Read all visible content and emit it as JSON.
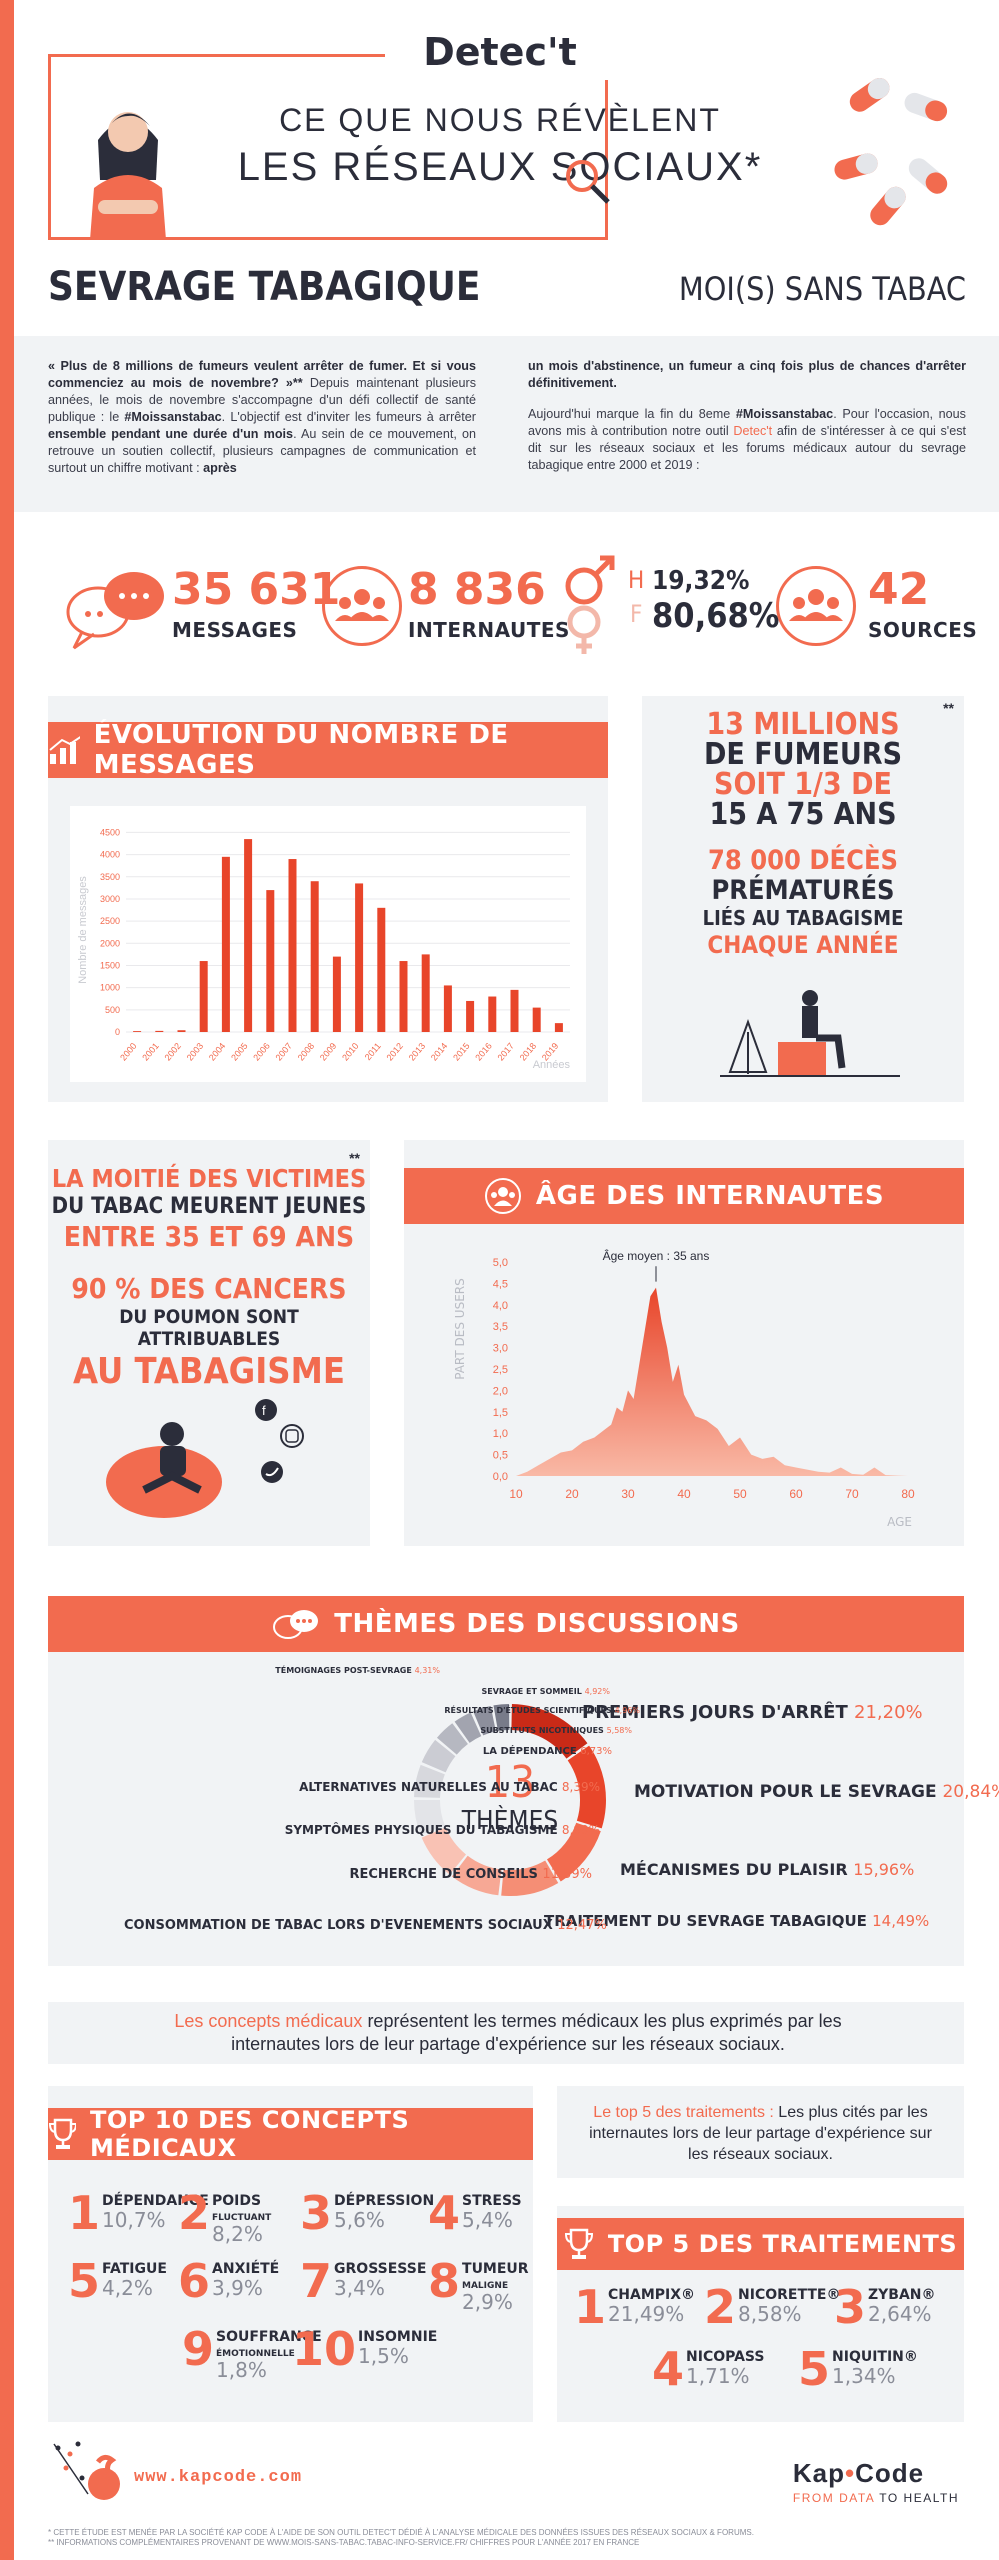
{
  "header": {
    "brand": "Detec't",
    "title_line1": "CE QUE NOUS RÉVÈLENT",
    "title_line2": "LES RÉSEAUX SOCIAUX*"
  },
  "section": {
    "left": "SEVRAGE TABAGIQUE",
    "right": "MOI(S) SANS TABAC"
  },
  "intro": {
    "col1_a": "« Plus de 8 millions de fumeurs veulent arrêter de fumer. Et si vous commenciez au mois de novembre? »**",
    "col1_b": " Depuis maintenant plusieurs années, le mois de novembre s'accompagne d'un défi collectif de santé publique : le ",
    "col1_c": "#Moissanstabac",
    "col1_d": ". L'objectif est d'inviter les fumeurs à arrêter ",
    "col1_e": "ensemble pendant une durée d'un mois",
    "col1_f": ". Au sein de ce mouvement, on retrouve un soutien collectif, plusieurs campagnes de communication et surtout un chiffre motivant : ",
    "col1_g": "après",
    "col2_a": "un mois d'abstinence, un fumeur a cinq fois plus de chances d'arrêter définitivement.",
    "col2_b": "Aujourd'hui marque la fin du 8eme ",
    "col2_c": "#Moissanstabac",
    "col2_d": ". Pour l'occasion, nous avons mis à contribution notre outil ",
    "col2_e": "Detec't",
    "col2_f": " afin de s'intéresser à ce qui s'est dit sur les réseaux sociaux et les forums médicaux autour du sevrage tabagique entre 2000 et 2019 :"
  },
  "stats": {
    "messages_value": "35 631",
    "messages_label": "MESSAGES",
    "users_value": "8 836",
    "users_label": "INTERNAUTES",
    "gender_h": "H",
    "gender_f": "F",
    "gender_h_value": "19,32%",
    "gender_f_value": "80,68%",
    "sources_value": "42",
    "sources_label": "SOURCES"
  },
  "evolution": {
    "title": "ÉVOLUTION DU NOMBRE DE MESSAGES"
  },
  "chart_data": [
    {
      "type": "bar",
      "title": "ÉVOLUTION DU NOMBRE DE MESSAGES",
      "xlabel": "Années",
      "ylabel": "Nombre de messages",
      "categories": [
        "2000",
        "2001",
        "2002",
        "2003",
        "2004",
        "2005",
        "2006",
        "2007",
        "2008",
        "2009",
        "2010",
        "2011",
        "2012",
        "2013",
        "2014",
        "2015",
        "2016",
        "2017",
        "2018",
        "2019"
      ],
      "values": [
        20,
        25,
        40,
        1600,
        3950,
        4350,
        3200,
        3900,
        3400,
        1700,
        3350,
        2800,
        1600,
        1750,
        1050,
        700,
        800,
        950,
        550,
        200
      ],
      "yticks": [
        "0",
        "500",
        "1000",
        "1500",
        "2000",
        "2500",
        "3000",
        "3500",
        "4000",
        "4500"
      ],
      "ylim": [
        0,
        4600
      ],
      "grid": true,
      "color": "#e8452a"
    },
    {
      "type": "area",
      "title": "ÂGE DES INTERNAUTES",
      "annotation": "Âge moyen : 35 ans",
      "xlabel": "AGE",
      "ylabel": "PART DES USERS",
      "xticks": [
        "10",
        "20",
        "30",
        "40",
        "50",
        "60",
        "70",
        "80"
      ],
      "yticks": [
        "0,0",
        "0,5",
        "1,0",
        "1,5",
        "2,0",
        "2,5",
        "3,0",
        "3,5",
        "4,0",
        "4,5",
        "5,0"
      ],
      "xlim": [
        10,
        80
      ],
      "ylim": [
        0,
        5
      ],
      "x": [
        10,
        12,
        14,
        16,
        18,
        20,
        22,
        24,
        26,
        27,
        28,
        29,
        30,
        31,
        32,
        33,
        34,
        35,
        36,
        37,
        38,
        39,
        40,
        42,
        44,
        46,
        48,
        50,
        52,
        54,
        56,
        58,
        60,
        62,
        64,
        66,
        68,
        70,
        72,
        74,
        76,
        78,
        80
      ],
      "y": [
        0,
        0.1,
        0.25,
        0.4,
        0.55,
        0.6,
        0.8,
        0.9,
        1.1,
        1.2,
        1.6,
        1.5,
        2.0,
        1.8,
        2.6,
        3.4,
        4.2,
        4.4,
        3.6,
        3.0,
        2.2,
        2.6,
        1.9,
        1.4,
        1.3,
        1.1,
        0.7,
        0.9,
        0.5,
        0.4,
        0.45,
        0.25,
        0.2,
        0.15,
        0.1,
        0.08,
        0.2,
        0.05,
        0.03,
        0.2,
        0.02,
        0.01,
        0
      ]
    },
    {
      "type": "pie",
      "title": "THÈMES DES DISCUSSIONS",
      "center_value": "13",
      "center_label": "THÈMES",
      "labels": [
        "PREMIERS JOURS D'ARRÊT",
        "MOTIVATION POUR LE SEVRAGE",
        "MÉCANISMES DU PLAISIR",
        "TRAITEMENT DU SEVRAGE TABAGIQUE",
        "CONSOMMATION DE TABAC LORS D'EVENEMENTS SOCIAUX",
        "RECHERCHE DE CONSEILS",
        "SYMPTÔMES PHYSIQUES DU TABAGISME",
        "ALTERNATIVES NATURELLES AU TABAC",
        "LA DÉPENDANCE",
        "SUBSTITUTS NICOTINIQUES",
        "RÉSULTATS D'ÉTUDES SCIENTIFIQUES",
        "SEVRAGE ET SOMMEIL",
        "TÉMOIGNAGES POST-SEVRAGE"
      ],
      "values": [
        21.2,
        20.84,
        15.96,
        14.49,
        12.47,
        11.59,
        8.99,
        8.39,
        6.73,
        5.58,
        4.96,
        4.92,
        4.31
      ],
      "value_labels": [
        "21,20%",
        "20,84%",
        "15,96%",
        "14,49%",
        "12,47%",
        "11,59%",
        "8,99%",
        "8,39%",
        "6,73%",
        "5,58%",
        "4,96%",
        "4,92%",
        "4,31%"
      ]
    }
  ],
  "fact1": {
    "stars": "**",
    "l1": "13 MILLIONS",
    "l2": "DE FUMEURS",
    "l3": "SOIT 1/3 DE",
    "l4": "15 A 75 ANS",
    "l5": "78 000 DÉCÈS",
    "l6": "PRÉMATURÉS",
    "l7": "LIÉS AU TABAGISME",
    "l8": "CHAQUE ANNÉE"
  },
  "fact2": {
    "stars": "**",
    "l1": "LA MOITIÉ DES VICTIMES",
    "l2": "DU TABAC MEURENT JEUNES",
    "l3": "ENTRE 35 ET 69 ANS",
    "l4": "90 % DES CANCERS",
    "l5": "DU POUMON SONT ATTRIBUABLES",
    "l6": "AU TABAGISME"
  },
  "age": {
    "title": "ÂGE DES INTERNAUTES"
  },
  "themes": {
    "title": "THÈMES DES DISCUSSIONS"
  },
  "concepts_intro": {
    "a": "Les concepts médicaux",
    "b": " représentent les termes médicaux les plus exprimés par les internautes lors de leur partage d'expérience sur les réseaux sociaux."
  },
  "top10": {
    "title": "TOP 10 DES CONCEPTS MÉDICAUX",
    "items": [
      {
        "rank": "1",
        "name": "DÉPENDANCE",
        "sub": "",
        "pct": "10,7%"
      },
      {
        "rank": "2",
        "name": "POIDS",
        "sub": "FLUCTUANT",
        "pct": "8,2%"
      },
      {
        "rank": "3",
        "name": "DÉPRESSION",
        "sub": "",
        "pct": "5,6%"
      },
      {
        "rank": "4",
        "name": "STRESS",
        "sub": "",
        "pct": "5,4%"
      },
      {
        "rank": "5",
        "name": "FATIGUE",
        "sub": "",
        "pct": "4,2%"
      },
      {
        "rank": "6",
        "name": "ANXIÉTÉ",
        "sub": "",
        "pct": "3,9%"
      },
      {
        "rank": "7",
        "name": "GROSSESSE",
        "sub": "",
        "pct": "3,4%"
      },
      {
        "rank": "8",
        "name": "TUMEUR",
        "sub": "MALIGNE",
        "pct": "2,9%"
      },
      {
        "rank": "9",
        "name": "SOUFFRANCE",
        "sub": "ÉMOTIONNELLE",
        "pct": "1,8%"
      },
      {
        "rank": "10",
        "name": "INSOMNIE",
        "sub": "",
        "pct": "1,5%"
      }
    ]
  },
  "top5_intro": {
    "a": "Le top 5 des traitements :",
    "b": " Les plus cités par les internautes lors de leur partage d'expérience sur les réseaux sociaux."
  },
  "top5": {
    "title": "TOP 5 DES TRAITEMENTS",
    "items": [
      {
        "rank": "1",
        "name": "CHAMPIX®",
        "pct": "21,49%"
      },
      {
        "rank": "2",
        "name": "NICORETTE®",
        "pct": "8,58%"
      },
      {
        "rank": "3",
        "name": "ZYBAN®",
        "pct": "2,64%"
      },
      {
        "rank": "4",
        "name": "NICOPASS",
        "pct": "1,71%"
      },
      {
        "rank": "5",
        "name": "NIQUITIN®",
        "pct": "1,34%"
      }
    ]
  },
  "footer": {
    "url": "www.kapcode.com",
    "brand_a": "Kap",
    "brand_b": "Code",
    "tagline_a": "FROM DATA",
    "tagline_b": " TO HEALTH",
    "note1": "* CETTE ÉTUDE EST MENÉE PAR LA SOCIÉTÉ KAP CODE À L'AIDE DE SON OUTIL DETEC'T DÉDIÉ À L'ANALYSE MÉDICALE DES DONNÉES ISSUES DES RÉSEAUX SOCIAUX & FORUMS.",
    "note2": "** INFORMATIONS COMPLÉMENTAIRES PROVENANT DE WWW.MOIS-SANS-TABAC.TABAC-INFO-SERVICE.FR/ CHIFFRES POUR L'ANNÉE 2017 EN FRANCE"
  }
}
